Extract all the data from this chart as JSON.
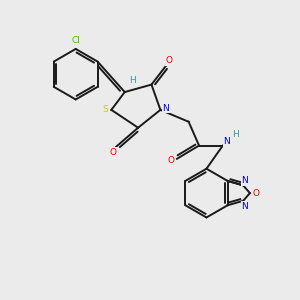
{
  "background_color": "#ebebeb",
  "bond_color": "#1a1a1a",
  "atom_colors": {
    "Cl": "#33cc00",
    "S": "#cccc00",
    "N": "#0000ee",
    "O": "#ee0000",
    "H": "#339999",
    "C": "#1a1a1a"
  },
  "figsize": [
    3.0,
    3.0
  ],
  "dpi": 100
}
